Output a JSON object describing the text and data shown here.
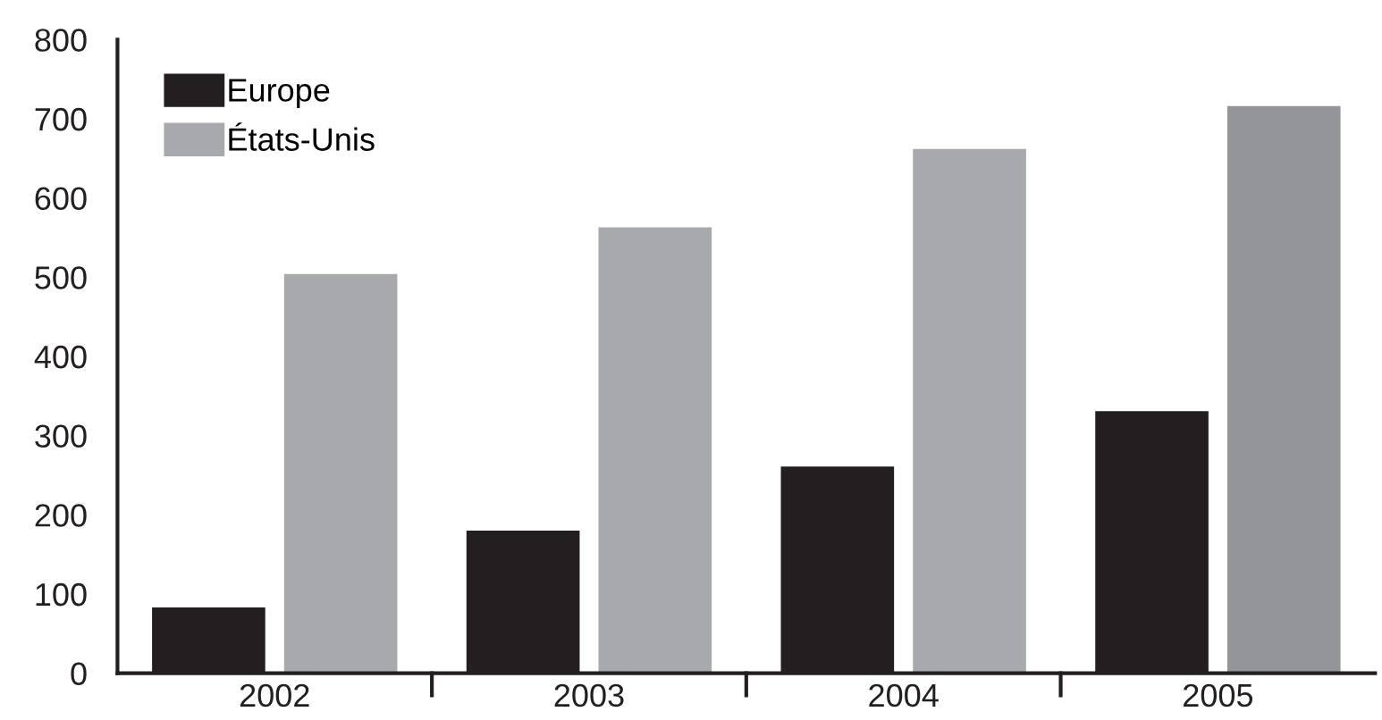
{
  "chart_data": {
    "type": "bar",
    "categories": [
      "2002",
      "2003",
      "2004",
      "2005"
    ],
    "series": [
      {
        "name": "Europe",
        "color": "#231f20",
        "values": [
          83,
          180,
          261,
          331
        ]
      },
      {
        "name": "États-Unis",
        "color": "#a7a9ac",
        "colors": [
          "#a7a9ac",
          "#a7a9ac",
          "#a7a9ac",
          "#939598"
        ],
        "values": [
          504,
          563,
          662,
          716
        ]
      }
    ],
    "ylim": [
      0,
      800
    ],
    "yticks": [
      0,
      100,
      200,
      300,
      400,
      500,
      600,
      700,
      800
    ],
    "grid": false,
    "legend": "top left"
  }
}
